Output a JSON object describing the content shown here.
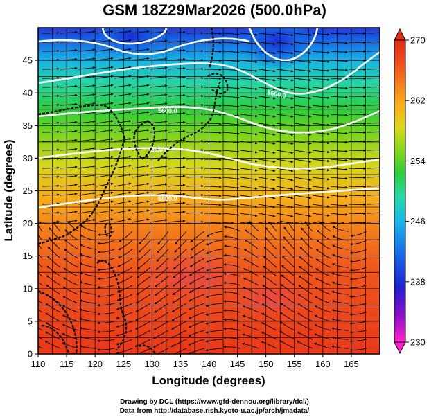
{
  "title": "GSM 18Z29Mar2026 (500.0hPa)",
  "map": {
    "x_label": "Longitude (degrees)",
    "y_label": "Latitude  (degrees)",
    "x_ticks": [
      "110",
      "115",
      "120",
      "125",
      "130",
      "135",
      "140",
      "145",
      "150",
      "155",
      "160",
      "165"
    ],
    "y_ticks": [
      "0",
      "5",
      "10",
      "15",
      "20",
      "25",
      "30",
      "35",
      "40",
      "45"
    ],
    "xlim": [
      110,
      170
    ],
    "ylim": [
      0,
      50
    ],
    "grid": true,
    "contour_labels": [
      "5600.0",
      "5800.0",
      "5800.0",
      "5600.0",
      "5800.0"
    ]
  },
  "colorbar": {
    "ticks": [
      "270",
      "262",
      "254",
      "246",
      "238",
      "230"
    ],
    "min": 230,
    "max": 270,
    "colors": [
      "#ff22cc",
      "#7a00c8",
      "#1a2bd6",
      "#1670e8",
      "#18b6e8",
      "#28d8a8",
      "#2ccd3c",
      "#8ad61c",
      "#d8d81c",
      "#f7b21a",
      "#f57a1c",
      "#ee4a1c",
      "#e02c16"
    ]
  },
  "credits": {
    "line1": "Drawing by DCL (https://www.gfd-dennou.org/library/dcl/)",
    "line2": "Data from http://database.rish.kyoto-u.ac.jp/arch/jmadata/"
  }
}
